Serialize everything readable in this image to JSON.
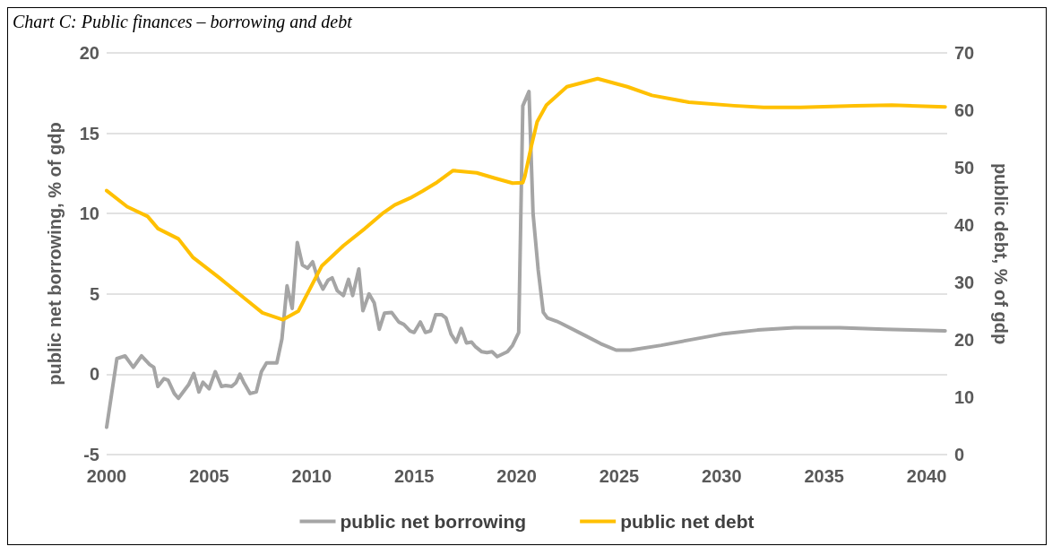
{
  "chart_data": {
    "type": "line",
    "title": "Chart C: Public finances – borrowing and debt",
    "ylabel": "public net borrowing, % of gdp",
    "y2label": "public debt, % of gdp",
    "xlim": [
      2000,
      2041
    ],
    "xticks": [
      2000,
      2005,
      2010,
      2015,
      2020,
      2025,
      2030,
      2035,
      2040
    ],
    "ylim": [
      -5,
      20
    ],
    "yticks": [
      -5,
      0,
      5,
      10,
      15,
      20
    ],
    "y2lim": [
      0,
      70
    ],
    "y2ticks": [
      0,
      10,
      20,
      30,
      40,
      50,
      60,
      70
    ],
    "grid": "y",
    "legend": "bottom",
    "marker": "none",
    "line_style": "solid",
    "series": [
      {
        "name": "public net borrowing",
        "color": "#a5a5a5",
        "x": [
          2000.0,
          2000.5,
          2000.9,
          2001.3,
          2001.7,
          2002.1,
          2002.3,
          2002.5,
          2002.8,
          2003.0,
          2003.3,
          2003.5,
          2004.0,
          2004.25,
          2004.5,
          2004.7,
          2005.0,
          2005.3,
          2005.6,
          2005.8,
          2006.1,
          2006.3,
          2006.5,
          2006.7,
          2007.0,
          2007.3,
          2007.55,
          2007.8,
          2008.3,
          2008.55,
          2008.8,
          2009.05,
          2009.3,
          2009.55,
          2009.8,
          2010.05,
          2010.3,
          2010.55,
          2010.8,
          2011.0,
          2011.25,
          2011.55,
          2011.8,
          2012.0,
          2012.3,
          2012.5,
          2012.8,
          2013.05,
          2013.3,
          2013.55,
          2013.9,
          2014.25,
          2014.5,
          2014.8,
          2015.0,
          2015.3,
          2015.55,
          2015.8,
          2016.05,
          2016.35,
          2016.55,
          2016.8,
          2017.05,
          2017.3,
          2017.55,
          2017.8,
          2018.0,
          2018.3,
          2018.55,
          2018.8,
          2019.05,
          2019.3,
          2019.55,
          2019.8,
          2020.1,
          2020.3,
          2020.6,
          2020.8,
          2021.05,
          2021.3,
          2021.5,
          2021.95,
          2022.2,
          2023.35,
          2024.1,
          2024.85,
          2025.55,
          2027.05,
          2028.5,
          2030.0,
          2031.75,
          2033.55,
          2035.75,
          2037.95,
          2040.9
        ],
        "values": [
          -3.3,
          0.97,
          1.14,
          0.43,
          1.14,
          0.6,
          0.43,
          -0.76,
          -0.27,
          -0.38,
          -1.2,
          -1.5,
          -0.65,
          0.05,
          -1.1,
          -0.5,
          -0.9,
          0.16,
          -0.76,
          -0.7,
          -0.76,
          -0.54,
          0.0,
          -0.54,
          -1.2,
          -1.1,
          0.16,
          0.7,
          0.7,
          2.2,
          5.5,
          4.1,
          8.2,
          6.8,
          6.6,
          7.0,
          5.95,
          5.3,
          5.85,
          6.0,
          5.2,
          4.9,
          5.9,
          4.9,
          6.55,
          3.95,
          5.0,
          4.45,
          2.8,
          3.8,
          3.85,
          3.25,
          3.1,
          2.7,
          2.6,
          3.25,
          2.6,
          2.7,
          3.7,
          3.7,
          3.5,
          2.5,
          2.0,
          2.85,
          1.95,
          2.0,
          1.7,
          1.4,
          1.35,
          1.4,
          1.1,
          1.25,
          1.4,
          1.8,
          2.6,
          16.7,
          17.6,
          10.0,
          6.5,
          3.85,
          3.5,
          3.3,
          3.15,
          2.4,
          1.9,
          1.5,
          1.5,
          1.8,
          2.15,
          2.5,
          2.75,
          2.9,
          2.9,
          2.8,
          2.7
        ]
      },
      {
        "name": "public net debt",
        "color": "#ffc000",
        "axis": "y2",
        "x": [
          2000.0,
          2001.0,
          2002.0,
          2002.5,
          2003.5,
          2004.2,
          2005.5,
          2006.7,
          2007.6,
          2008.6,
          2009.35,
          2010.5,
          2011.55,
          2012.6,
          2013.45,
          2014.05,
          2014.8,
          2015.4,
          2016.05,
          2016.9,
          2018.05,
          2018.9,
          2019.8,
          2020.3,
          2020.4,
          2020.7,
          2021.0,
          2021.45,
          2022.45,
          2023.95,
          2025.4,
          2026.6,
          2028.4,
          2030.6,
          2032.05,
          2033.85,
          2036.5,
          2038.3,
          2040.9
        ],
        "values": [
          46,
          43.2,
          41.5,
          39.4,
          37.6,
          34.4,
          30.8,
          27.3,
          24.7,
          23.5,
          25.0,
          32.9,
          36.4,
          39.4,
          42.0,
          43.5,
          44.7,
          45.9,
          47.3,
          49.5,
          49.1,
          48.2,
          47.3,
          47.4,
          48.5,
          53.5,
          58.0,
          60.9,
          64.1,
          65.5,
          64.1,
          62.6,
          61.4,
          60.8,
          60.5,
          60.5,
          60.8,
          60.9,
          60.6
        ]
      }
    ]
  }
}
